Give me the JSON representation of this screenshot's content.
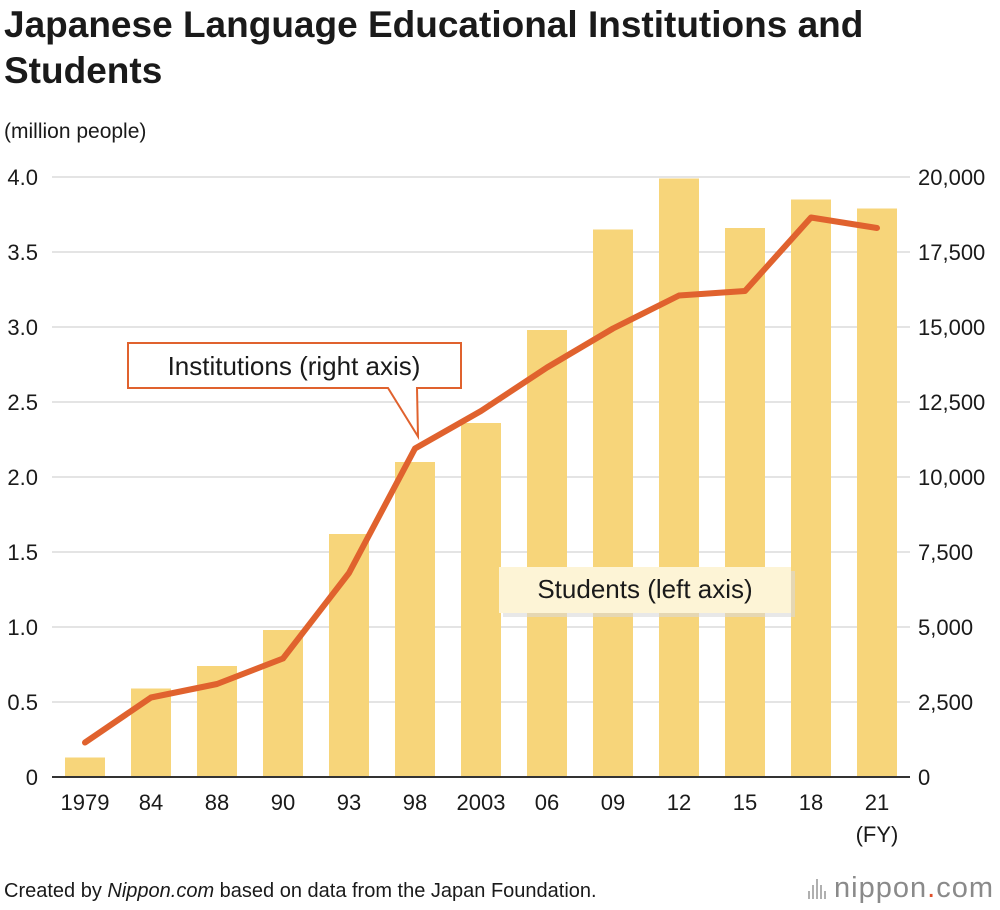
{
  "title": "Japanese Language Educational Institutions and Students",
  "unit_label": "(million people)",
  "footer": {
    "credit_prefix": "Created by ",
    "credit_site": "Nippon.com",
    "credit_suffix": " based on data from the Japan Foundation.",
    "logo_main": "nippon",
    "logo_dot": ".",
    "logo_tld": "com"
  },
  "colors": {
    "bar": "#f7d57a",
    "line": "#e0622e",
    "grid": "#c8c8c8",
    "axis": "#333333"
  },
  "chart_data": {
    "type": "bar",
    "categories": [
      "1979",
      "84",
      "88",
      "90",
      "93",
      "98",
      "2003",
      "06",
      "09",
      "12",
      "15",
      "18",
      "21"
    ],
    "x_unit_label": "(FY)",
    "series": [
      {
        "name": "Students (left axis)",
        "type": "bar",
        "axis": "left",
        "values": [
          0.13,
          0.59,
          0.74,
          0.98,
          1.62,
          2.1,
          2.36,
          2.98,
          3.65,
          3.99,
          3.66,
          3.85,
          3.79
        ]
      },
      {
        "name": "Institutions (right axis)",
        "type": "line",
        "axis": "right",
        "values": [
          1150,
          2650,
          3100,
          3950,
          6800,
          10950,
          12200,
          13650,
          14950,
          16050,
          16200,
          18650,
          18300
        ]
      }
    ],
    "y_left": {
      "lim": [
        0,
        4.0
      ],
      "ticks": [
        "0",
        "0.5",
        "1.0",
        "1.5",
        "2.0",
        "2.5",
        "3.0",
        "3.5",
        "4.0"
      ]
    },
    "y_right": {
      "lim": [
        0,
        20000
      ],
      "ticks": [
        "0",
        "2,500",
        "5,000",
        "7,500",
        "10,000",
        "12,500",
        "15,000",
        "17,500",
        "20,000"
      ]
    },
    "grid": true,
    "annotations": [
      {
        "text": "Institutions (right axis)",
        "target": "line",
        "anchor_category": "98"
      },
      {
        "text": "Students (left axis)",
        "target": "bars"
      }
    ]
  }
}
